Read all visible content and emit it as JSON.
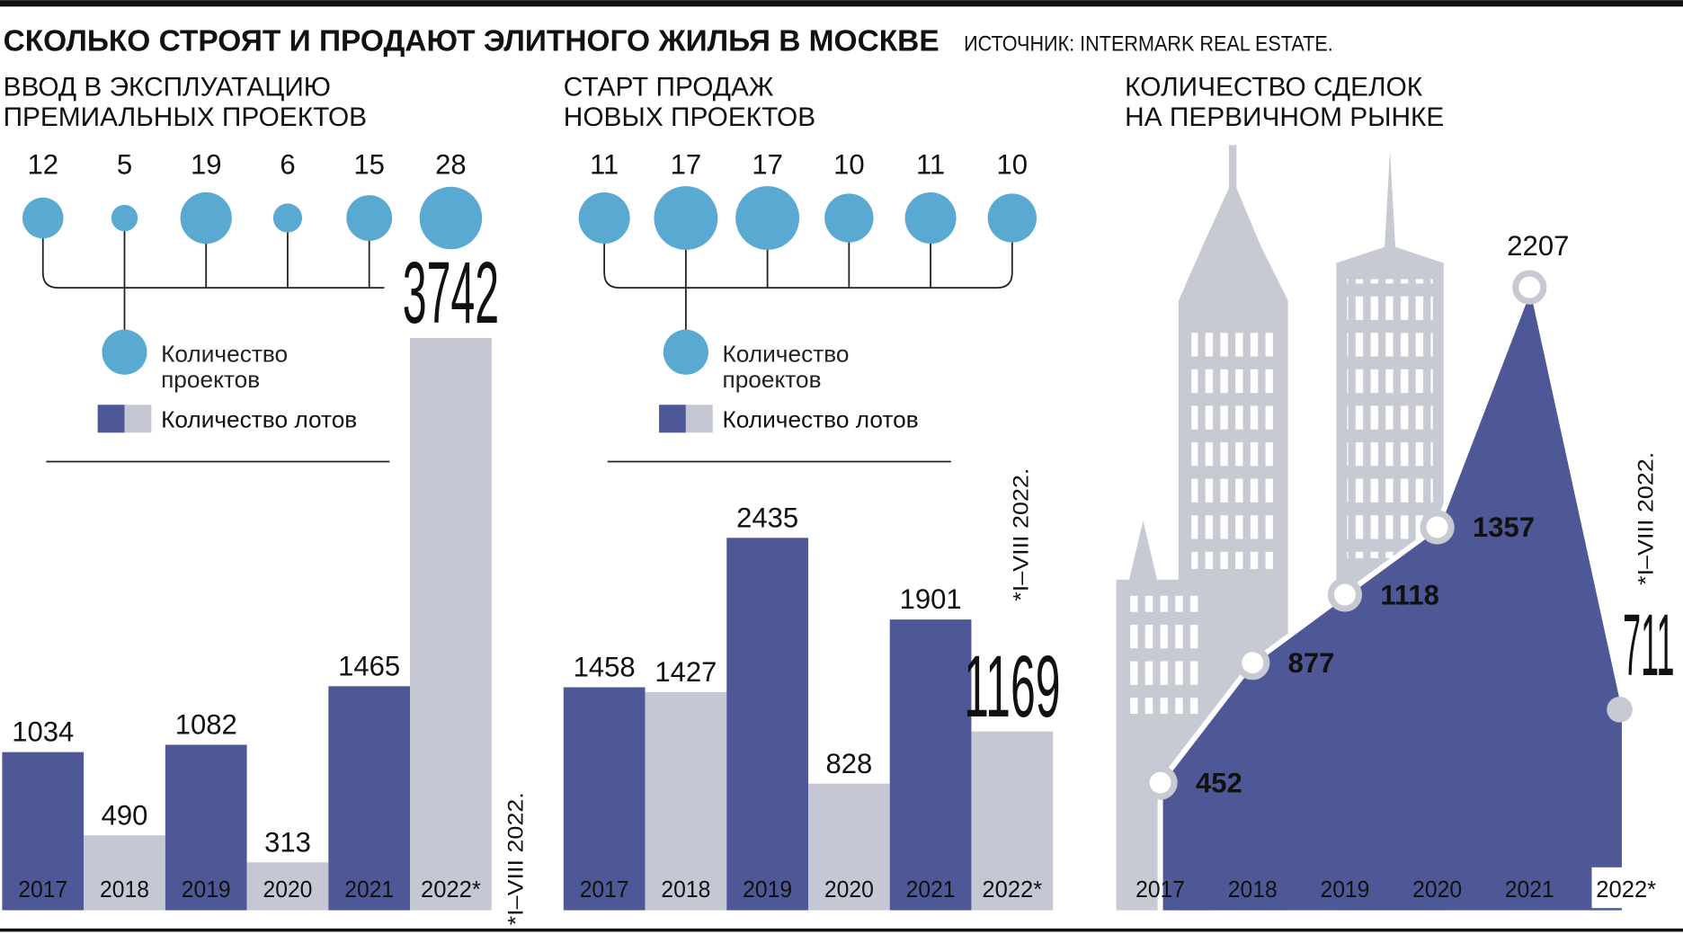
{
  "header": {
    "title": "СКОЛЬКО СТРОЯТ И ПРОДАЮТ ЭЛИТНОГО ЖИЛЬЯ В МОСКВЕ",
    "source": "ИСТОЧНИК: INTERMARK REAL ESTATE."
  },
  "chart_data": [
    {
      "type": "bar",
      "title": [
        "ВВОД В ЭКСПЛУАТАЦИЮ",
        "ПРЕМИАЛЬНЫХ ПРОЕКТОВ"
      ],
      "categories": [
        "2017",
        "2018",
        "2019",
        "2020",
        "2021",
        "2022*"
      ],
      "series": [
        {
          "name": "Количество лотов",
          "colors": [
            "#4f5896",
            "#c5c8d4",
            "#4f5896",
            "#c5c8d4",
            "#4f5896",
            "#c5c8d4"
          ],
          "values": [
            1034,
            490,
            1082,
            313,
            1465,
            3742
          ]
        },
        {
          "name": "Количество проектов",
          "type": "bubble",
          "color": "#59a9d3",
          "values": [
            12,
            5,
            19,
            6,
            15,
            28
          ]
        }
      ],
      "highlight_color": "#c0272d",
      "note": "*I–VIII 2022."
    },
    {
      "type": "bar",
      "title": [
        "СТАРТ ПРОДАЖ",
        "НОВЫХ ПРОЕКТОВ"
      ],
      "categories": [
        "2017",
        "2018",
        "2019",
        "2020",
        "2021",
        "2022*"
      ],
      "series": [
        {
          "name": "Количество лотов",
          "colors": [
            "#4f5896",
            "#c5c8d4",
            "#4f5896",
            "#c5c8d4",
            "#4f5896",
            "#c5c8d4"
          ],
          "values": [
            1458,
            1427,
            2435,
            828,
            1901,
            1169
          ]
        },
        {
          "name": "Количество проектов",
          "type": "bubble",
          "color": "#59a9d3",
          "values": [
            11,
            17,
            17,
            10,
            11,
            10
          ]
        }
      ],
      "highlight_color": "#c0272d",
      "note": "*I–VIII 2022."
    },
    {
      "type": "area",
      "title": [
        "КОЛИЧЕСТВО СДЕЛОК",
        "НА ПЕРВИЧНОМ РЫНКЕ"
      ],
      "categories": [
        "2017",
        "2018",
        "2019",
        "2020",
        "2021",
        "2022*"
      ],
      "values": [
        452,
        877,
        1118,
        1357,
        2207,
        711
      ],
      "color": "#4f5896",
      "highlight_color": "#c0272d",
      "note": "*I–VIII 2022."
    }
  ]
}
